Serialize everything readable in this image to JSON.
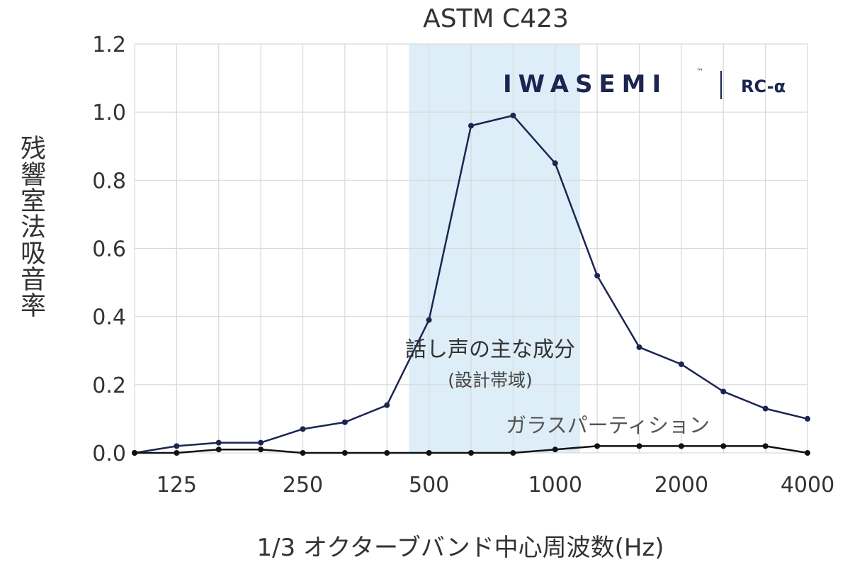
{
  "chart_data": {
    "type": "line",
    "title": "ASTM C423",
    "xlabel": "1/3 オクターブバンド中心周波数(Hz)",
    "ylabel": "残響室法吸音率",
    "ylim": [
      0,
      1.2
    ],
    "yticks": [
      "0.0",
      "0.2",
      "0.4",
      "0.6",
      "0.8",
      "1.0",
      "1.2"
    ],
    "x": [
      100,
      125,
      160,
      200,
      250,
      315,
      400,
      500,
      630,
      800,
      1000,
      1250,
      1600,
      2000,
      2500,
      3150,
      4000
    ],
    "xtick_labels": [
      "",
      "125",
      "",
      "",
      "250",
      "",
      "",
      "500",
      "",
      "",
      "1000",
      "",
      "",
      "2000",
      "",
      "",
      "4000"
    ],
    "series": [
      {
        "values": [
          0.0,
          0.02,
          0.03,
          0.03,
          0.07,
          0.09,
          0.14,
          0.39,
          0.96,
          0.99,
          0.85,
          0.52,
          0.31,
          0.26,
          0.18,
          0.13,
          0.1
        ],
        "color": "#1b2550"
      },
      {
        "values": [
          0.0,
          0.0,
          0.01,
          0.01,
          0.0,
          0.0,
          0.0,
          0.0,
          0.0,
          0.0,
          0.01,
          0.02,
          0.02,
          0.02,
          0.02,
          0.02,
          0.0
        ],
        "color": "#111111"
      }
    ],
    "shaded_band": {
      "from": 450,
      "to": 1150,
      "color": "#deeef8"
    },
    "annotations": {
      "speech_main": "話し声の主な成分",
      "speech_sub": "(設計帯域)",
      "glass": "ガラスパーティション"
    },
    "grid": true
  },
  "logo": {
    "brand": "IWASEMI",
    "tm": "™",
    "model": "RC-α",
    "color": "#1b2550"
  }
}
